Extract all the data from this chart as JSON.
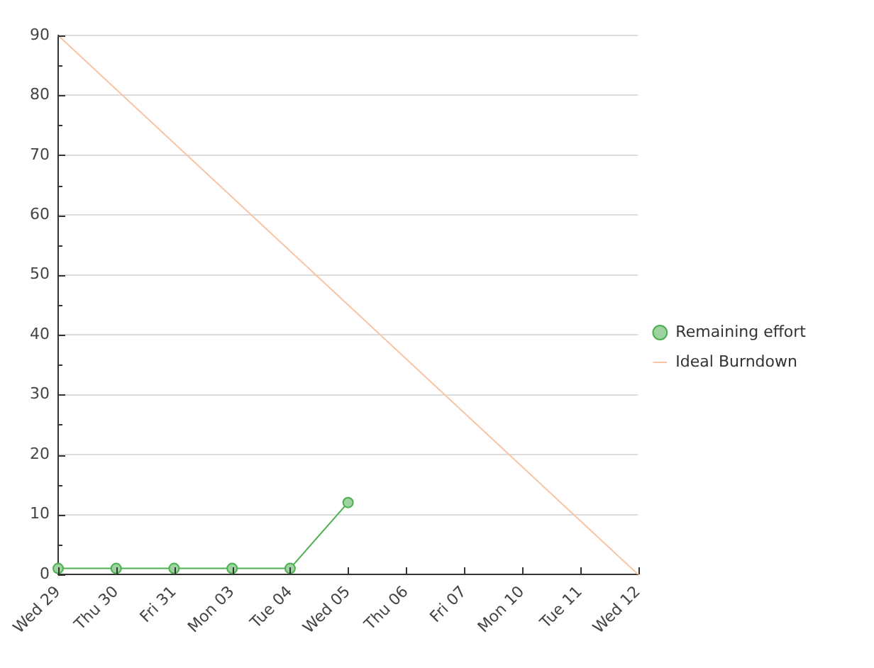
{
  "chart_data": {
    "type": "line",
    "categories": [
      "Wed 29",
      "Thu 30",
      "Fri 31",
      "Mon 03",
      "Tue 04",
      "Wed 05",
      "Thu 06",
      "Fri 07",
      "Mon 10",
      "Tue 11",
      "Wed 12"
    ],
    "series": [
      {
        "name": "Remaining effort",
        "color": "#4caf50",
        "values": [
          1,
          1,
          1,
          1,
          1,
          12,
          null,
          null,
          null,
          null,
          null
        ]
      },
      {
        "name": "Ideal Burndown",
        "color": "#f8c5a4",
        "marker": "none",
        "values": [
          90,
          81,
          72,
          63,
          54,
          45,
          36,
          27,
          18,
          9,
          0
        ]
      }
    ],
    "ylim": [
      0,
      90
    ],
    "yticks": [
      0,
      {
        "value": 5,
        "label": null
      },
      10,
      {
        "value": 15,
        "label": null
      },
      20,
      {
        "value": 25,
        "label": null
      },
      30,
      {
        "value": 35,
        "label": null
      },
      40,
      {
        "value": 45,
        "label": null
      },
      50,
      {
        "value": 55,
        "label": null
      },
      60,
      {
        "value": 65,
        "label": null
      },
      70,
      {
        "value": 75,
        "label": null
      },
      80,
      {
        "value": 85,
        "label": null
      },
      90
    ],
    "grid": "y",
    "legend": "right",
    "marker": "circle",
    "line_style": "solid"
  }
}
